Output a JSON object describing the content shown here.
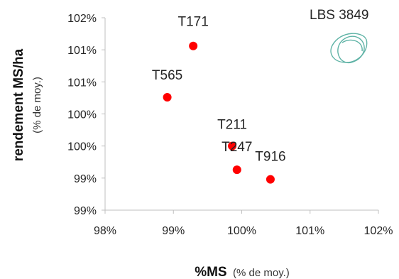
{
  "chart_data": {
    "type": "scatter",
    "xlabel": "%MS",
    "xlabel_suffix": "(% de moy.)",
    "ylabel": "rendement MS/ha",
    "ylabel_suffix": "(% de moy.)",
    "xlim": [
      98,
      102
    ],
    "ylim": [
      98.5,
      101.5
    ],
    "x_ticks": [
      98,
      99,
      100,
      101,
      102
    ],
    "x_tick_labels": [
      "98%",
      "99%",
      "100%",
      "101%",
      "102%"
    ],
    "y_ticks": [
      98.5,
      99,
      99.5,
      100,
      100.5,
      101,
      101.5
    ],
    "y_tick_labels": [
      "99%",
      "99%",
      "100%",
      "100%",
      "101%",
      "101%",
      "102%"
    ],
    "grid": false,
    "marker_color": "#ff0000",
    "points": [
      {
        "label": "T171",
        "x": 99.29,
        "y": 101.06
      },
      {
        "label": "T565",
        "x": 98.91,
        "y": 100.26
      },
      {
        "label": "T211",
        "x": 99.86,
        "y": 99.5
      },
      {
        "label": "T247",
        "x": 99.93,
        "y": 99.13
      },
      {
        "label": "T916",
        "x": 100.42,
        "y": 98.98
      }
    ]
  },
  "logo": {
    "text": "LBS 3849",
    "icon": "leaf-swirl-icon",
    "color": "#5fb3a6"
  }
}
